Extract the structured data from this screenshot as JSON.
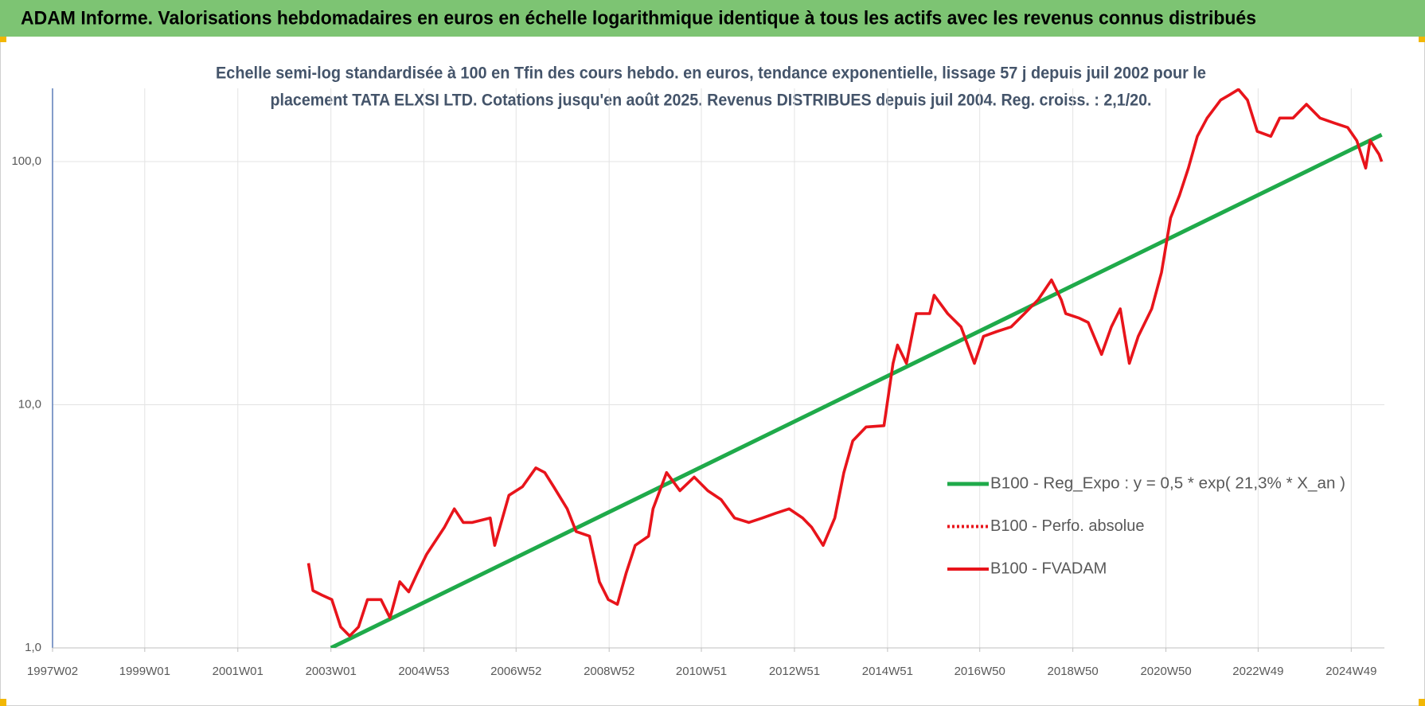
{
  "chart_data": {
    "type": "line",
    "title": "ADAM Informe. Valorisations hebdomadaires en euros en échelle logarithmique identique à tous les actifs avec les revenus connus distribués",
    "subtitle": [
      "Echelle semi-log standardisée à 100 en Tfin des cours hebdo. en euros, tendance exponentielle, lissage 57 j depuis juil 2002 pour le",
      "placement TATA  ELXSI LTD. Cotations jusqu'en août 2025. Revenus DISTRIBUES depuis juil 2004. Reg. croiss. : 2,1/20."
    ],
    "log_scale": "y",
    "grid": true,
    "legend": "right",
    "xlim": [
      "1997W02",
      "2025W34"
    ],
    "xticks": [
      "1997W02",
      "1999W01",
      "2001W01",
      "2003W01",
      "2004W53",
      "2006W52",
      "2008W52",
      "2010W51",
      "2012W51",
      "2014W51",
      "2016W50",
      "2018W50",
      "2020W50",
      "2022W49",
      "2024W49"
    ],
    "ylim": [
      1,
      200
    ],
    "yticks": [
      {
        "value": 1,
        "label": "1,0"
      },
      {
        "value": 10,
        "label": "10,0"
      },
      {
        "value": 100,
        "label": "100,0"
      }
    ],
    "series": [
      {
        "name": "B100 - Reg_Expo : y = 0,5 * exp( 21,3% *  X_an )",
        "color": "#1faa4a",
        "dash": "solid",
        "x": [
          "2003W01",
          "2025W31"
        ],
        "values": [
          1.0,
          129
        ]
      },
      {
        "name": "B100 - Perfo. absolue",
        "color": "#e8141b",
        "dash": "dotted",
        "x": [],
        "values": []
      },
      {
        "name": "B100 - FVADAM",
        "color": "#e8141b",
        "dash": "solid",
        "x": [
          "2002W28",
          "2002W33",
          "2002W43",
          "2003W02",
          "2003W12",
          "2003W22",
          "2003W32",
          "2003W42",
          "2004W05",
          "2004W15",
          "2004W26",
          "2004W36",
          "2004W46",
          "2005W04",
          "2005W24",
          "2005W35",
          "2005W45",
          "2006W03",
          "2006W23",
          "2006W28",
          "2006W44",
          "2007W07",
          "2007W22",
          "2007W32",
          "2007W42",
          "2008W05",
          "2008W15",
          "2008W30",
          "2008W41",
          "2008W51",
          "2009W09",
          "2009W19",
          "2009W29",
          "2009W44",
          "2009W49",
          "2010W12",
          "2010W27",
          "2010W43",
          "2011W06",
          "2011W21",
          "2011W36",
          "2011W52",
          "2012W15",
          "2012W30",
          "2012W45",
          "2013W08",
          "2013W18",
          "2013W31",
          "2013W44",
          "2014W02",
          "2014W12",
          "2014W27",
          "2014W47",
          "2015W05",
          "2015W10",
          "2015W20",
          "2015W31",
          "2015W46",
          "2015W51",
          "2016W14",
          "2016W29",
          "2016W44",
          "2017W02",
          "2017W17",
          "2017W33",
          "2017W48",
          "2018W11",
          "2018W26",
          "2018W37",
          "2018W42",
          "2019W05",
          "2019W15",
          "2019W30",
          "2019W41",
          "2019W51",
          "2020W09",
          "2020W19",
          "2020W34",
          "2020W45",
          "2021W03",
          "2021W13",
          "2021W23",
          "2021W33",
          "2021W44",
          "2022W07",
          "2022W17",
          "2022W27",
          "2022W37",
          "2022W48",
          "2023W11",
          "2023W21",
          "2023W36",
          "2023W51",
          "2024W14",
          "2024W30",
          "2024W45",
          "2025W03",
          "2025W13",
          "2025W18",
          "2025W28",
          "2025W31"
        ],
        "values": [
          2.23,
          1.72,
          1.65,
          1.58,
          1.22,
          1.12,
          1.22,
          1.58,
          1.58,
          1.33,
          1.87,
          1.7,
          2.04,
          2.43,
          3.14,
          3.73,
          3.28,
          3.28,
          3.42,
          2.64,
          4.24,
          4.6,
          5.5,
          5.26,
          4.6,
          3.73,
          3.01,
          2.88,
          1.87,
          1.58,
          1.51,
          2.04,
          2.64,
          2.88,
          3.73,
          5.26,
          4.43,
          5.04,
          4.43,
          4.07,
          3.42,
          3.28,
          3.42,
          3.58,
          3.73,
          3.42,
          3.14,
          2.64,
          3.42,
          5.26,
          7.1,
          8.1,
          8.2,
          14.8,
          17.6,
          14.8,
          23.7,
          23.7,
          28.2,
          23.7,
          20.9,
          14.8,
          19.1,
          20.0,
          20.9,
          23.7,
          27.0,
          32.6,
          27.0,
          23.7,
          22.7,
          21.8,
          16.1,
          20.9,
          24.8,
          14.8,
          19.1,
          24.8,
          35,
          58.6,
          72.7,
          94,
          127,
          151,
          179,
          188,
          198,
          179,
          133,
          127,
          151,
          151,
          172,
          151,
          144,
          138,
          122,
          94,
          122,
          107,
          100
        ]
      }
    ]
  }
}
